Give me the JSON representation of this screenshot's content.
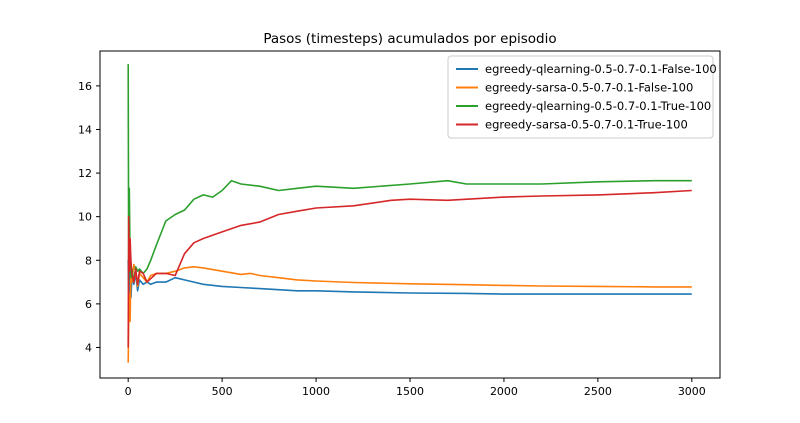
{
  "chart_data": {
    "type": "line",
    "title": "Pasos (timesteps) acumulados por episodio",
    "xlabel": "",
    "ylabel": "",
    "xlim": [
      -150,
      3150
    ],
    "ylim": [
      2.6,
      17.6
    ],
    "xticks": [
      0,
      500,
      1000,
      1500,
      2000,
      2500,
      3000
    ],
    "yticks": [
      4,
      6,
      8,
      10,
      12,
      14,
      16
    ],
    "grid": false,
    "legend_position": "top-right",
    "series": [
      {
        "name": "egreedy-qlearning-0.5-0.7-0.1-False-100",
        "color": "#1f77b4",
        "x": [
          0,
          5,
          10,
          15,
          20,
          30,
          40,
          50,
          60,
          80,
          100,
          120,
          150,
          200,
          250,
          300,
          350,
          400,
          500,
          600,
          700,
          800,
          900,
          1000,
          1200,
          1500,
          1800,
          2000,
          2200,
          2500,
          2800,
          3000
        ],
        "y": [
          8.0,
          5.5,
          7.8,
          6.3,
          7.3,
          6.9,
          7.4,
          6.6,
          7.1,
          6.9,
          7.0,
          6.9,
          7.0,
          7.0,
          7.2,
          7.1,
          7.0,
          6.9,
          6.8,
          6.75,
          6.7,
          6.65,
          6.6,
          6.6,
          6.55,
          6.5,
          6.48,
          6.45,
          6.45,
          6.45,
          6.45,
          6.45
        ]
      },
      {
        "name": "egreedy-sarsa-0.5-0.7-0.1-False-100",
        "color": "#ff7f0e",
        "x": [
          0,
          5,
          10,
          15,
          20,
          30,
          40,
          50,
          60,
          80,
          100,
          120,
          150,
          200,
          250,
          300,
          350,
          400,
          500,
          600,
          650,
          700,
          800,
          900,
          1000,
          1200,
          1500,
          1800,
          2000,
          2200,
          2500,
          2800,
          3000
        ],
        "y": [
          3.3,
          6.5,
          5.2,
          7.9,
          7.0,
          7.8,
          7.5,
          6.8,
          7.4,
          7.2,
          7.0,
          7.3,
          7.4,
          7.4,
          7.5,
          7.65,
          7.7,
          7.65,
          7.5,
          7.35,
          7.4,
          7.3,
          7.2,
          7.1,
          7.05,
          6.98,
          6.92,
          6.88,
          6.85,
          6.82,
          6.8,
          6.78,
          6.78
        ]
      },
      {
        "name": "egreedy-qlearning-0.5-0.7-0.1-True-100",
        "color": "#2ca02c",
        "x": [
          0,
          3,
          6,
          10,
          15,
          20,
          30,
          40,
          50,
          60,
          80,
          100,
          120,
          150,
          200,
          250,
          300,
          350,
          400,
          450,
          500,
          550,
          600,
          700,
          800,
          900,
          1000,
          1200,
          1500,
          1700,
          1800,
          2000,
          2200,
          2500,
          2800,
          3000
        ],
        "y": [
          17.0,
          7.0,
          11.3,
          8.0,
          7.2,
          7.6,
          7.0,
          7.7,
          7.5,
          7.6,
          7.4,
          7.6,
          8.0,
          8.7,
          9.8,
          10.1,
          10.3,
          10.8,
          11.0,
          10.9,
          11.2,
          11.65,
          11.5,
          11.4,
          11.2,
          11.3,
          11.4,
          11.3,
          11.5,
          11.65,
          11.5,
          11.5,
          11.5,
          11.6,
          11.65,
          11.65
        ]
      },
      {
        "name": "egreedy-sarsa-0.5-0.7-0.1-True-100",
        "color": "#d62728",
        "x": [
          0,
          3,
          6,
          10,
          15,
          20,
          30,
          40,
          50,
          60,
          80,
          100,
          150,
          200,
          250,
          300,
          350,
          400,
          500,
          600,
          700,
          800,
          900,
          1000,
          1200,
          1400,
          1500,
          1700,
          2000,
          2200,
          2500,
          2800,
          3000
        ],
        "y": [
          4.0,
          10.0,
          7.5,
          9.0,
          7.9,
          7.4,
          7.0,
          7.6,
          6.9,
          7.5,
          7.4,
          7.0,
          7.4,
          7.4,
          7.3,
          8.3,
          8.8,
          9.0,
          9.3,
          9.6,
          9.75,
          10.1,
          10.25,
          10.4,
          10.5,
          10.75,
          10.8,
          10.75,
          10.9,
          10.95,
          11.0,
          11.1,
          11.2
        ]
      }
    ]
  }
}
